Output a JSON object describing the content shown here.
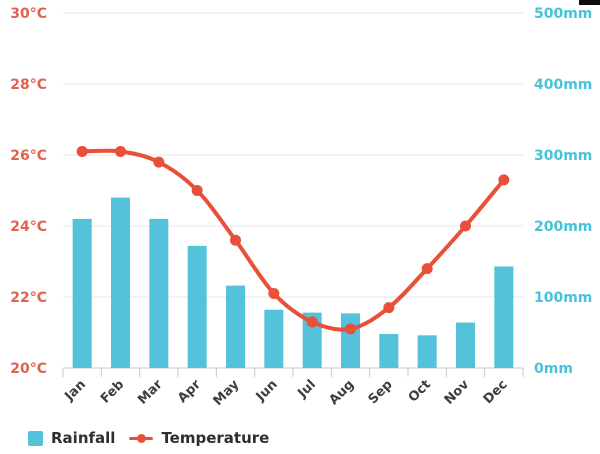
{
  "chart_data": {
    "type": "combo",
    "title": "",
    "categories": [
      "Jan",
      "Feb",
      "Mar",
      "Apr",
      "May",
      "Jun",
      "Jul",
      "Aug",
      "Sep",
      "Oct",
      "Nov",
      "Dec"
    ],
    "series": [
      {
        "name": "Rainfall",
        "type": "bar",
        "y_axis": "right",
        "unit": "mm",
        "color": "#54c2da",
        "values": [
          210,
          240,
          210,
          172,
          116,
          82,
          78,
          77,
          48,
          46,
          64,
          143
        ]
      },
      {
        "name": "Temperature",
        "type": "line",
        "y_axis": "left",
        "unit": "°C",
        "color": "#e8503a",
        "smooth": true,
        "values": [
          26.1,
          26.1,
          25.8,
          25.0,
          23.6,
          22.1,
          21.3,
          21.1,
          21.7,
          22.8,
          24.0,
          25.3
        ]
      }
    ],
    "left_axis": {
      "unit": "°C",
      "min": 20,
      "max": 30,
      "ticks": [
        "30°C",
        "28°C",
        "26°C",
        "24°C",
        "22°C",
        "20°C"
      ],
      "label_color": "#e0624f"
    },
    "right_axis": {
      "unit": "mm",
      "min": 0,
      "max": 500,
      "ticks": [
        "500mm",
        "400mm",
        "300mm",
        "200mm",
        "100mm",
        "0mm"
      ],
      "label_color": "#46c3da"
    },
    "x_axis": {
      "label_color": "#3e3e3e",
      "label_rotation": -45
    },
    "grid": {
      "horizontal": true,
      "color": "#e7e7e7",
      "axis_line_color": "#c9c9c9"
    },
    "legend": {
      "position": "bottom-left",
      "text_color": "#2e2e2e",
      "items": [
        {
          "label": "Rainfall",
          "marker": "square",
          "color": "#54c2da"
        },
        {
          "label": "Temperature",
          "marker": "line-dot",
          "color": "#e8503a"
        }
      ]
    }
  },
  "decoration": {
    "top_right_black_bar_color": "#0c0c0c"
  }
}
